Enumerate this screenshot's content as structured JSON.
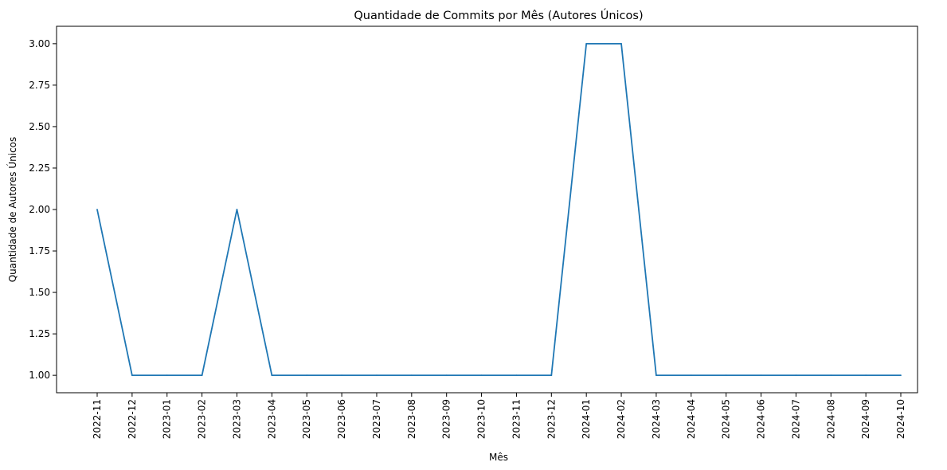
{
  "chart_data": {
    "type": "line",
    "title": "Quantidade de Commits por Mês (Autores Únicos)",
    "xlabel": "Mês",
    "ylabel": "Quantidade de Autores Únicos",
    "ylim": [
      0.895,
      3.105
    ],
    "y_ticks": [
      "1.00",
      "1.25",
      "1.50",
      "1.75",
      "2.00",
      "2.25",
      "2.50",
      "2.75",
      "3.00"
    ],
    "grid": false,
    "x": [
      "2022-11",
      "2022-12",
      "2023-01",
      "2023-02",
      "2023-03",
      "2023-04",
      "2023-05",
      "2023-06",
      "2023-07",
      "2023-08",
      "2023-09",
      "2023-10",
      "2023-11",
      "2023-12",
      "2024-01",
      "2024-02",
      "2024-03",
      "2024-04",
      "2024-05",
      "2024-06",
      "2024-07",
      "2024-08",
      "2024-09",
      "2024-10"
    ],
    "series": [
      {
        "values": [
          2,
          1,
          1,
          1,
          2,
          1,
          1,
          1,
          1,
          1,
          1,
          1,
          1,
          1,
          3,
          3,
          1,
          1,
          1,
          1,
          1,
          1,
          1,
          1
        ],
        "color": "#1f77b4"
      }
    ]
  }
}
